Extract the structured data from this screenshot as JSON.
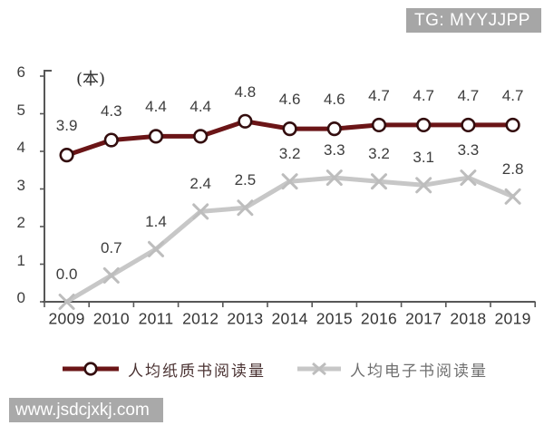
{
  "page": {
    "badge_text": "TG: MYYJJPP",
    "watermark_text": "www.jsdcjxkj.com"
  },
  "chart_data": {
    "type": "line",
    "title": "",
    "unit_label": "(本)",
    "xlabel": "",
    "ylabel": "本 (books)",
    "categories": [
      "2009",
      "2010",
      "2011",
      "2012",
      "2013",
      "2014",
      "2015",
      "2016",
      "2017",
      "2018",
      "2019"
    ],
    "series": [
      {
        "name": "人均纸质书阅读量",
        "values": [
          3.9,
          4.3,
          4.4,
          4.4,
          4.8,
          4.6,
          4.6,
          4.7,
          4.7,
          4.7,
          4.7
        ],
        "color": "#6b1517",
        "marker": "circle",
        "marker_fill": "#ffffff",
        "marker_stroke": "#330d0e"
      },
      {
        "name": "人均电子书阅读量",
        "values": [
          0.0,
          0.7,
          1.4,
          2.4,
          2.5,
          3.2,
          3.3,
          3.2,
          3.1,
          3.3,
          2.8
        ],
        "color": "#c7c7c7",
        "marker": "x",
        "marker_stroke": "#bdbdbd"
      }
    ],
    "ylim": [
      0,
      6
    ],
    "yticks": [
      0,
      1,
      2,
      3,
      4,
      5,
      6
    ],
    "grid": false,
    "data_labels": true,
    "legend_position": "bottom",
    "axis_color": "#575757",
    "label_color": "#3d3d3d"
  }
}
